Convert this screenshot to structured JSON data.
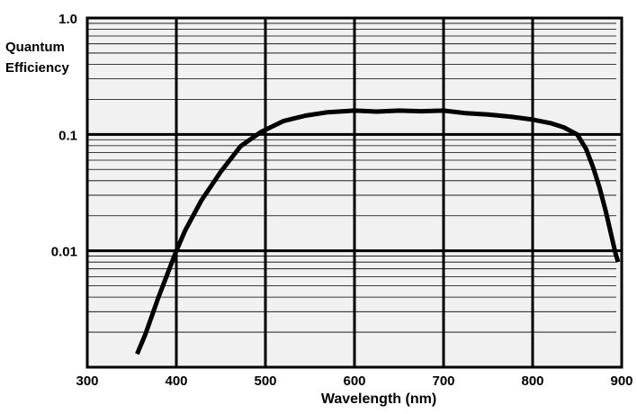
{
  "chart_data": {
    "type": "line",
    "title": "",
    "xlabel": "Wavelength (nm)",
    "ylabel_lines": [
      "Quantum",
      "Efficiency"
    ],
    "x_scale": "linear",
    "y_scale": "log",
    "xlim": [
      300,
      900
    ],
    "ylim": [
      0.001,
      1.0
    ],
    "x_ticks": [
      300,
      400,
      500,
      600,
      700,
      800,
      900
    ],
    "x_tick_labels": [
      "300",
      "400",
      "500",
      "600",
      "700",
      "800",
      "900"
    ],
    "y_ticks": [
      0.01,
      0.1,
      1.0
    ],
    "y_tick_labels": [
      "0.01",
      "0.1",
      "1.0"
    ],
    "grid": true,
    "legend": "none",
    "colors": {
      "background": "#ffffff",
      "plot_area": "#f1f1f1",
      "line": "#000000",
      "grid": "#000000"
    },
    "series": [
      {
        "x": [
          356,
          365,
          380,
          400,
          410,
          428,
          450,
          472,
          495,
          520,
          545,
          570,
          600,
          625,
          650,
          675,
          700,
          725,
          750,
          775,
          800,
          820,
          835,
          850,
          860,
          868,
          875,
          882,
          888,
          893,
          896
        ],
        "y": [
          0.0013,
          0.0019,
          0.004,
          0.01,
          0.015,
          0.027,
          0.048,
          0.079,
          0.105,
          0.13,
          0.145,
          0.155,
          0.16,
          0.157,
          0.16,
          0.158,
          0.16,
          0.152,
          0.148,
          0.142,
          0.134,
          0.125,
          0.115,
          0.1,
          0.075,
          0.052,
          0.035,
          0.022,
          0.014,
          0.0095,
          0.008
        ]
      }
    ]
  }
}
